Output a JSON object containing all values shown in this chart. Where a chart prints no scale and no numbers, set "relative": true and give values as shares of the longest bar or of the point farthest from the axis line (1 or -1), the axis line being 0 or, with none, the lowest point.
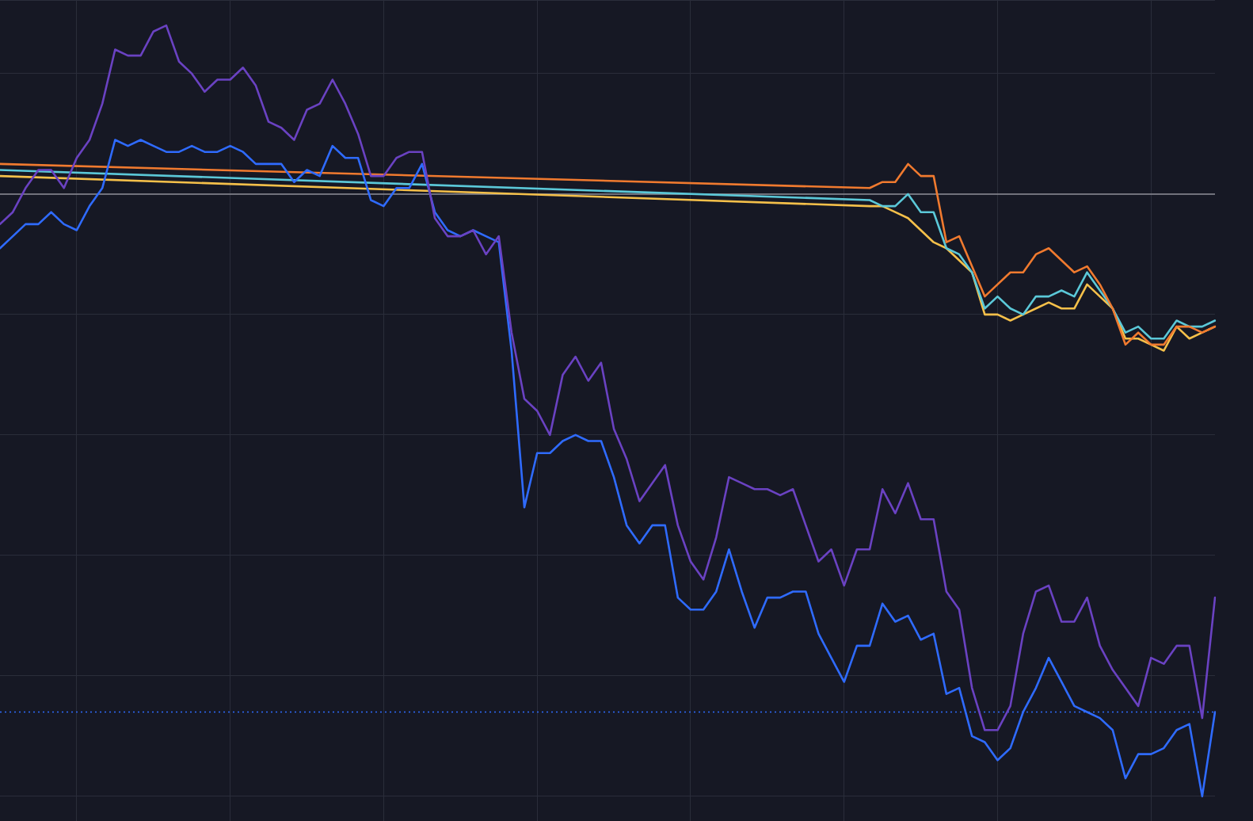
{
  "chart_data": {
    "type": "line",
    "relative": true,
    "grid": true,
    "legend": false,
    "marker": "none",
    "line_style": "solid",
    "categories": [
      null,
      null,
      null,
      null,
      null,
      null,
      null,
      null,
      null,
      null,
      null,
      null,
      null,
      null,
      null,
      null,
      null,
      null,
      null,
      null,
      null,
      null,
      null,
      null,
      null,
      null,
      null,
      null,
      null,
      null,
      null,
      null,
      null,
      null,
      null,
      null,
      null,
      null,
      null,
      null,
      null,
      null,
      null,
      null,
      null,
      null,
      null,
      null,
      null,
      null,
      null,
      null,
      null,
      null,
      null,
      null,
      null,
      null,
      null,
      null,
      null,
      null,
      null,
      null,
      null,
      null,
      null,
      null,
      null,
      null,
      null,
      null,
      null,
      null,
      null,
      null,
      null,
      null,
      null,
      null,
      null,
      null,
      null,
      null,
      null,
      null,
      null,
      null,
      null,
      null,
      null,
      null,
      null,
      null,
      null,
      null
    ],
    "series": [
      {
        "color": "#6a42c2",
        "values": [
          -0.05,
          -0.03,
          0.01,
          0.04,
          0.04,
          0.01,
          0.06,
          0.09,
          0.15,
          0.24,
          0.23,
          0.23,
          0.27,
          0.28,
          0.22,
          0.2,
          0.17,
          0.19,
          0.19,
          0.21,
          0.18,
          0.12,
          0.11,
          0.09,
          0.14,
          0.15,
          0.19,
          0.15,
          0.1,
          0.03,
          0.03,
          0.06,
          0.07,
          0.07,
          -0.04,
          -0.07,
          -0.07,
          -0.06,
          -0.1,
          -0.07,
          -0.23,
          -0.34,
          -0.36,
          -0.4,
          -0.3,
          -0.27,
          -0.31,
          -0.28,
          -0.39,
          -0.44,
          -0.51,
          -0.48,
          -0.45,
          -0.55,
          -0.61,
          -0.64,
          -0.57,
          -0.47,
          -0.48,
          -0.49,
          -0.49,
          -0.5,
          -0.49,
          -0.55,
          -0.61,
          -0.59,
          -0.65,
          -0.59,
          -0.59,
          -0.49,
          -0.53,
          -0.48,
          -0.54,
          -0.54,
          -0.66,
          -0.69,
          -0.82,
          -0.89,
          -0.89,
          -0.85,
          -0.73,
          -0.66,
          -0.65,
          -0.71,
          -0.71,
          -0.67,
          -0.75,
          -0.79,
          -0.82,
          -0.85,
          -0.77,
          -0.78,
          -0.75,
          -0.75,
          -0.87,
          -0.67
        ]
      },
      {
        "color": "#2f6bff",
        "values": [
          -0.09,
          -0.07,
          -0.05,
          -0.05,
          -0.03,
          -0.05,
          -0.06,
          -0.02,
          0.01,
          0.09,
          0.08,
          0.09,
          0.08,
          0.07,
          0.07,
          0.08,
          0.07,
          0.07,
          0.08,
          0.07,
          0.05,
          0.05,
          0.05,
          0.02,
          0.04,
          0.03,
          0.08,
          0.06,
          0.06,
          -0.01,
          -0.02,
          0.01,
          0.01,
          0.05,
          -0.03,
          -0.06,
          -0.07,
          -0.06,
          -0.07,
          -0.08,
          -0.26,
          -0.52,
          -0.43,
          -0.43,
          -0.41,
          -0.4,
          -0.41,
          -0.41,
          -0.47,
          -0.55,
          -0.58,
          -0.55,
          -0.55,
          -0.67,
          -0.69,
          -0.69,
          -0.66,
          -0.59,
          -0.66,
          -0.72,
          -0.67,
          -0.67,
          -0.66,
          -0.66,
          -0.73,
          -0.77,
          -0.81,
          -0.75,
          -0.75,
          -0.68,
          -0.71,
          -0.7,
          -0.74,
          -0.73,
          -0.83,
          -0.82,
          -0.9,
          -0.91,
          -0.94,
          -0.92,
          -0.86,
          -0.82,
          -0.77,
          -0.81,
          -0.85,
          -0.86,
          -0.87,
          -0.89,
          -0.97,
          -0.93,
          -0.93,
          -0.92,
          -0.89,
          -0.88,
          -1,
          -0.86
        ]
      },
      {
        "color": "#f07a2f",
        "values": [
          0.05,
          null,
          null,
          null,
          null,
          null,
          null,
          null,
          null,
          null,
          null,
          null,
          null,
          null,
          null,
          null,
          null,
          null,
          null,
          null,
          null,
          null,
          null,
          null,
          null,
          null,
          null,
          null,
          null,
          null,
          null,
          null,
          null,
          null,
          null,
          null,
          null,
          null,
          null,
          null,
          null,
          null,
          null,
          null,
          null,
          null,
          null,
          null,
          null,
          null,
          null,
          null,
          null,
          null,
          null,
          null,
          null,
          null,
          null,
          null,
          null,
          null,
          null,
          null,
          null,
          null,
          null,
          null,
          0.01,
          0.02,
          0.02,
          0.05,
          0.03,
          0.03,
          -0.08,
          -0.07,
          -0.12,
          -0.17,
          -0.15,
          -0.13,
          -0.13,
          -0.1,
          -0.09,
          -0.11,
          -0.13,
          -0.12,
          -0.15,
          -0.19,
          -0.25,
          -0.23,
          -0.25,
          -0.25,
          -0.22,
          -0.22,
          -0.23,
          -0.22
        ]
      },
      {
        "color": "#5bc8d8",
        "values": [
          0.04,
          null,
          null,
          null,
          null,
          null,
          null,
          null,
          null,
          null,
          null,
          null,
          null,
          null,
          null,
          null,
          null,
          null,
          null,
          null,
          null,
          null,
          null,
          null,
          null,
          null,
          null,
          null,
          null,
          null,
          null,
          null,
          null,
          null,
          null,
          null,
          null,
          null,
          null,
          null,
          null,
          null,
          null,
          null,
          null,
          null,
          null,
          null,
          null,
          null,
          null,
          null,
          null,
          null,
          null,
          null,
          null,
          null,
          null,
          null,
          null,
          null,
          null,
          null,
          null,
          null,
          null,
          null,
          -0.01,
          -0.02,
          -0.02,
          0,
          -0.03,
          -0.03,
          -0.09,
          -0.1,
          -0.13,
          -0.19,
          -0.17,
          -0.19,
          -0.2,
          -0.17,
          -0.17,
          -0.16,
          -0.17,
          -0.13,
          -0.16,
          -0.19,
          -0.23,
          -0.22,
          -0.24,
          -0.24,
          -0.21,
          -0.22,
          -0.22,
          -0.21
        ]
      },
      {
        "color": "#f5c04a",
        "values": [
          0.03,
          null,
          null,
          null,
          null,
          null,
          null,
          null,
          null,
          null,
          null,
          null,
          null,
          null,
          null,
          null,
          null,
          null,
          null,
          null,
          null,
          null,
          null,
          null,
          null,
          null,
          null,
          null,
          null,
          null,
          null,
          null,
          null,
          null,
          null,
          null,
          null,
          null,
          null,
          null,
          null,
          null,
          null,
          null,
          null,
          null,
          null,
          null,
          null,
          null,
          null,
          null,
          null,
          null,
          null,
          null,
          null,
          null,
          null,
          null,
          null,
          null,
          null,
          null,
          null,
          null,
          null,
          null,
          -0.02,
          -0.02,
          -0.03,
          -0.04,
          -0.06,
          -0.08,
          -0.09,
          -0.11,
          -0.13,
          -0.2,
          -0.2,
          -0.21,
          -0.2,
          -0.19,
          -0.18,
          -0.19,
          -0.19,
          -0.15,
          -0.17,
          -0.19,
          -0.24,
          -0.24,
          -0.25,
          -0.26,
          -0.22,
          -0.24,
          -0.23,
          -0.22
        ]
      }
    ],
    "ref_lines": [
      {
        "axis": "y",
        "value": 0,
        "color": "#8e8e96",
        "line_style": "solid"
      },
      {
        "axis": "y",
        "value": -0.86,
        "color": "#2f6bff",
        "line_style": "dotted"
      }
    ]
  }
}
